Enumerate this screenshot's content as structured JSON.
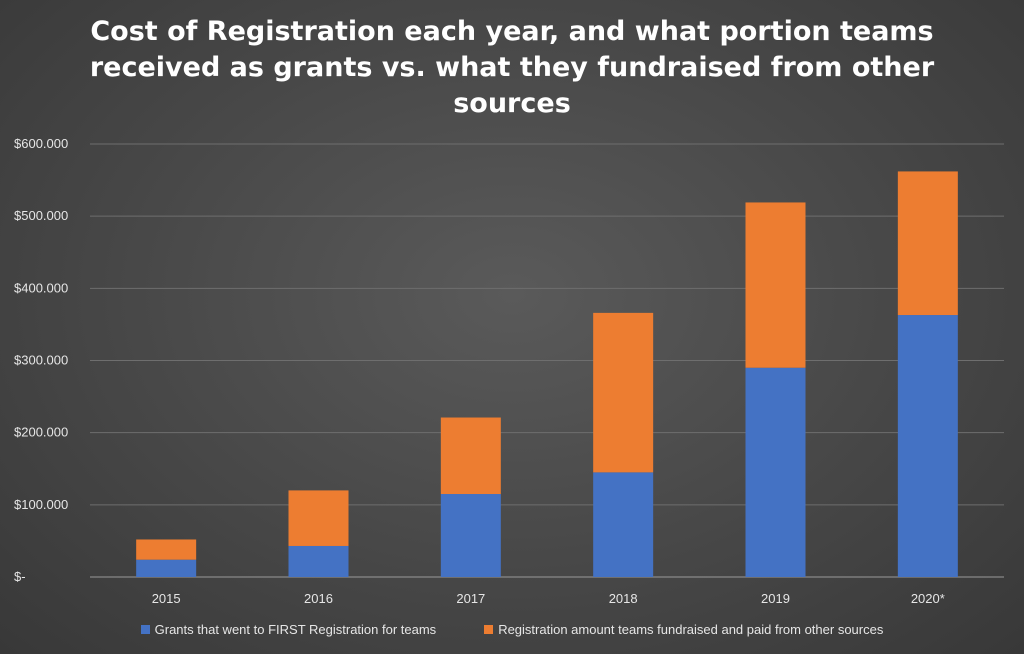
{
  "chart_data": {
    "type": "bar",
    "stacked": true,
    "title": "Cost of Registration each year, and what portion teams received as grants vs. what they fundraised from other sources",
    "categories": [
      "2015",
      "2016",
      "2017",
      "2018",
      "2019",
      "2020*"
    ],
    "series": [
      {
        "name": "Grants that went to FIRST Registration for teams",
        "color": "#4472C4",
        "values": [
          24000,
          43000,
          115000,
          145000,
          290000,
          363000
        ]
      },
      {
        "name": "Registration amount teams fundraised and paid from other sources",
        "color": "#ED7D31",
        "values": [
          28000,
          77000,
          106000,
          221000,
          229000,
          199000
        ]
      }
    ],
    "y_ticks": [
      "$-",
      "$100.000",
      "$200.000",
      "$300.000",
      "$400.000",
      "$500.000",
      "$600.000"
    ],
    "ylim": [
      0,
      600000
    ],
    "grid": true,
    "legend_position": "bottom"
  }
}
